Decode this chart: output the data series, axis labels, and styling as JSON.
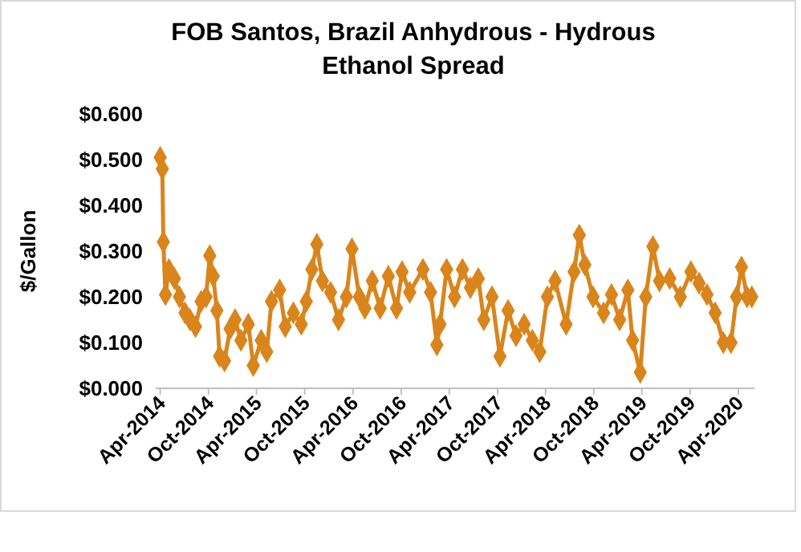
{
  "chart_data": {
    "type": "line",
    "title": "FOB Santos, Brazil Anhydrous - Hydrous Ethanol Spread",
    "ylabel": "$/Gallon",
    "marker": "diamond",
    "grid": false,
    "x": [
      "2014-04-01",
      "2014-04-09",
      "2014-04-13",
      "2014-04-21",
      "2014-05-04",
      "2014-05-25",
      "2014-06-13",
      "2014-07-04",
      "2014-07-23",
      "2014-08-13",
      "2014-09-03",
      "2014-09-22",
      "2014-10-06",
      "2014-10-19",
      "2014-11-02",
      "2014-11-12",
      "2014-12-01",
      "2014-12-22",
      "2015-01-10",
      "2015-02-01",
      "2015-03-01",
      "2015-03-20",
      "2015-04-19",
      "2015-05-10",
      "2015-05-28",
      "2015-06-28",
      "2015-07-19",
      "2015-08-19",
      "2015-09-18",
      "2015-10-07",
      "2015-10-28",
      "2015-11-16",
      "2015-12-07",
      "2016-01-07",
      "2016-02-06",
      "2016-03-07",
      "2016-03-28",
      "2016-04-25",
      "2016-05-16",
      "2016-06-13",
      "2016-07-13",
      "2016-08-13",
      "2016-09-13",
      "2016-10-04",
      "2016-11-02",
      "2016-12-22",
      "2017-01-20",
      "2017-02-13",
      "2017-02-25",
      "2017-03-22",
      "2017-04-21",
      "2017-05-21",
      "2017-06-20",
      "2017-07-20",
      "2017-08-10",
      "2017-09-10",
      "2017-10-10",
      "2017-11-10",
      "2017-12-10",
      "2018-01-10",
      "2018-02-10",
      "2018-03-10",
      "2018-04-08",
      "2018-05-07",
      "2018-06-18",
      "2018-07-18",
      "2018-08-07",
      "2018-08-28",
      "2018-09-28",
      "2018-11-07",
      "2018-12-07",
      "2019-01-07",
      "2019-02-07",
      "2019-02-25",
      "2019-03-26",
      "2019-04-16",
      "2019-05-13",
      "2019-06-07",
      "2019-07-16",
      "2019-08-25",
      "2019-10-04",
      "2019-11-04",
      "2019-12-04",
      "2020-01-04",
      "2020-02-04",
      "2020-03-04",
      "2020-03-25",
      "2020-04-13",
      "2020-05-04",
      "2020-05-22"
    ],
    "series": [
      {
        "color": "#d9851c",
        "values": [
          0.505,
          0.48,
          0.32,
          0.205,
          0.26,
          0.24,
          0.2,
          0.165,
          0.15,
          0.135,
          0.19,
          0.2,
          0.29,
          0.245,
          0.17,
          0.07,
          0.06,
          0.13,
          0.15,
          0.105,
          0.14,
          0.05,
          0.105,
          0.08,
          0.19,
          0.215,
          0.135,
          0.165,
          0.14,
          0.19,
          0.26,
          0.315,
          0.235,
          0.21,
          0.15,
          0.2,
          0.305,
          0.2,
          0.175,
          0.235,
          0.175,
          0.245,
          0.175,
          0.255,
          0.21,
          0.26,
          0.21,
          0.095,
          0.14,
          0.26,
          0.2,
          0.26,
          0.22,
          0.24,
          0.15,
          0.2,
          0.07,
          0.17,
          0.115,
          0.14,
          0.105,
          0.08,
          0.2,
          0.235,
          0.14,
          0.255,
          0.335,
          0.27,
          0.2,
          0.165,
          0.205,
          0.15,
          0.215,
          0.105,
          0.035,
          0.2,
          0.31,
          0.235,
          0.24,
          0.2,
          0.255,
          0.23,
          0.205,
          0.165,
          0.1,
          0.1,
          0.2,
          0.265,
          0.2,
          0.2
        ]
      }
    ],
    "xlim": [
      "2014-03-15",
      "2020-06-01"
    ],
    "xticks": [
      {
        "value": "2014-04-01",
        "label": "Apr-2014"
      },
      {
        "value": "2014-10-01",
        "label": "Oct-2014"
      },
      {
        "value": "2015-04-01",
        "label": "Apr-2015"
      },
      {
        "value": "2015-10-01",
        "label": "Oct-2015"
      },
      {
        "value": "2016-04-01",
        "label": "Apr-2016"
      },
      {
        "value": "2016-10-01",
        "label": "Oct-2016"
      },
      {
        "value": "2017-04-01",
        "label": "Apr-2017"
      },
      {
        "value": "2017-10-01",
        "label": "Oct-2017"
      },
      {
        "value": "2018-04-01",
        "label": "Apr-2018"
      },
      {
        "value": "2018-10-01",
        "label": "Oct-2018"
      },
      {
        "value": "2019-04-01",
        "label": "Apr-2019"
      },
      {
        "value": "2019-10-01",
        "label": "Oct-2019"
      },
      {
        "value": "2020-04-01",
        "label": "Apr-2020"
      }
    ],
    "ylim": [
      0,
      0.6
    ],
    "yticks": [
      {
        "value": 0,
        "label": "$0.000"
      },
      {
        "value": 0.1,
        "label": "$0.100"
      },
      {
        "value": 0.2,
        "label": "$0.200"
      },
      {
        "value": 0.3,
        "label": "$0.300"
      },
      {
        "value": 0.4,
        "label": "$0.400"
      },
      {
        "value": 0.5,
        "label": "$0.500"
      },
      {
        "value": 0.6,
        "label": "$0.600"
      }
    ]
  }
}
